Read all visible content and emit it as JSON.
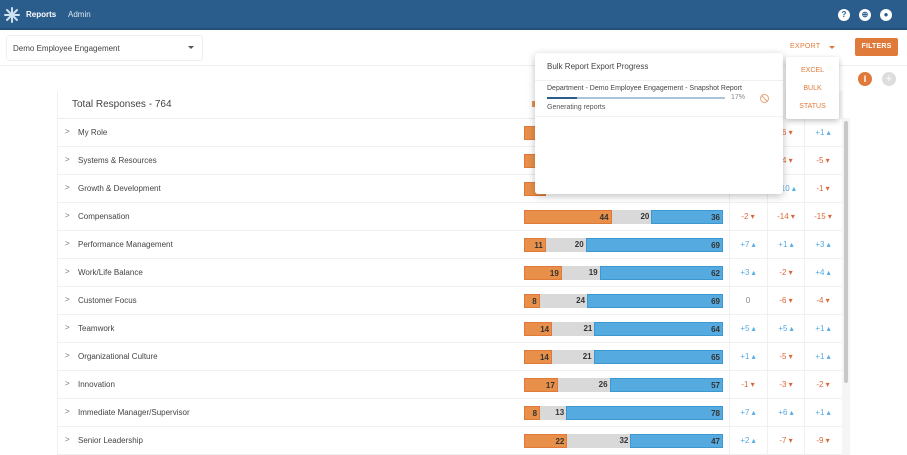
{
  "topbar": {
    "logo_icon": "snowflake-logo-icon",
    "nav": [
      {
        "label": "Reports",
        "active": true
      },
      {
        "label": "Admin",
        "active": false
      }
    ],
    "icons": [
      "help-icon",
      "globe-icon",
      "account-icon"
    ],
    "help_glyph": "?",
    "globe_glyph": "⊕",
    "account_glyph": "●"
  },
  "toolbar": {
    "survey_select_value": "Demo Employee Engagement",
    "export_label": "EXPORT",
    "filters_label": "FILTERS",
    "info_glyph": "I",
    "add_glyph": "+"
  },
  "export_menu": {
    "items": [
      "EXCEL",
      "BULK",
      "STATUS"
    ]
  },
  "bulk_modal": {
    "title": "Bulk Report Export Progress",
    "job_name": "Department - Demo Employee Engagement - Snapshot Report",
    "progress_percent": 17,
    "progress_label": "17%",
    "status": "Generating reports"
  },
  "colors": {
    "brand": "#2a5d8c",
    "accent": "#e07a3a",
    "negative": "#e8904a",
    "neutral": "#d9d9d9",
    "positive": "#55abe0"
  },
  "table": {
    "title": "Total Responses - 764",
    "rows": [
      {
        "label": "My Role",
        "neg": 6,
        "neu": null,
        "pos": null,
        "d1": "",
        "d2": "-6",
        "d3": "+1",
        "d1dir": "",
        "d2dir": "down",
        "d3dir": "up"
      },
      {
        "label": "Systems & Resources",
        "neg": null,
        "neu": null,
        "pos": null,
        "d1": "",
        "d2": "-4",
        "d3": "-5",
        "d1dir": "",
        "d2dir": "down",
        "d3dir": "down"
      },
      {
        "label": "Growth & Development",
        "neg": null,
        "neu": null,
        "pos": null,
        "d1": "",
        "d2": "+10",
        "d3": "-1",
        "d1dir": "",
        "d2dir": "up",
        "d3dir": "down"
      },
      {
        "label": "Compensation",
        "neg": 44,
        "neu": 20,
        "pos": 36,
        "d1": "-2",
        "d2": "-14",
        "d3": "-15",
        "d1dir": "down",
        "d2dir": "down",
        "d3dir": "down"
      },
      {
        "label": "Performance Management",
        "neg": 11,
        "neu": 20,
        "pos": 69,
        "d1": "+7",
        "d2": "+1",
        "d3": "+3",
        "d1dir": "up",
        "d2dir": "up",
        "d3dir": "up"
      },
      {
        "label": "Work/Life Balance",
        "neg": 19,
        "neu": 19,
        "pos": 62,
        "d1": "+3",
        "d2": "-2",
        "d3": "+4",
        "d1dir": "up",
        "d2dir": "down",
        "d3dir": "up"
      },
      {
        "label": "Customer Focus",
        "neg": 8,
        "neu": 24,
        "pos": 69,
        "d1": "0",
        "d2": "-6",
        "d3": "-4",
        "d1dir": "zero",
        "d2dir": "down",
        "d3dir": "down"
      },
      {
        "label": "Teamwork",
        "neg": 14,
        "neu": 21,
        "pos": 64,
        "d1": "+5",
        "d2": "+5",
        "d3": "+1",
        "d1dir": "up",
        "d2dir": "up",
        "d3dir": "up"
      },
      {
        "label": "Organizational Culture",
        "neg": 14,
        "neu": 21,
        "pos": 65,
        "d1": "+1",
        "d2": "-5",
        "d3": "+1",
        "d1dir": "up",
        "d2dir": "down",
        "d3dir": "up"
      },
      {
        "label": "Innovation",
        "neg": 17,
        "neu": 26,
        "pos": 57,
        "d1": "-1",
        "d2": "-3",
        "d3": "-2",
        "d1dir": "down",
        "d2dir": "down",
        "d3dir": "down"
      },
      {
        "label": "Immediate Manager/Supervisor",
        "neg": 8,
        "neu": 13,
        "pos": 78,
        "d1": "+7",
        "d2": "+6",
        "d3": "+1",
        "d1dir": "up",
        "d2dir": "up",
        "d3dir": "up"
      },
      {
        "label": "Senior Leadership",
        "neg": 22,
        "neu": 32,
        "pos": 47,
        "d1": "+2",
        "d2": "-7",
        "d3": "-9",
        "d1dir": "up",
        "d2dir": "down",
        "d3dir": "down"
      }
    ]
  }
}
